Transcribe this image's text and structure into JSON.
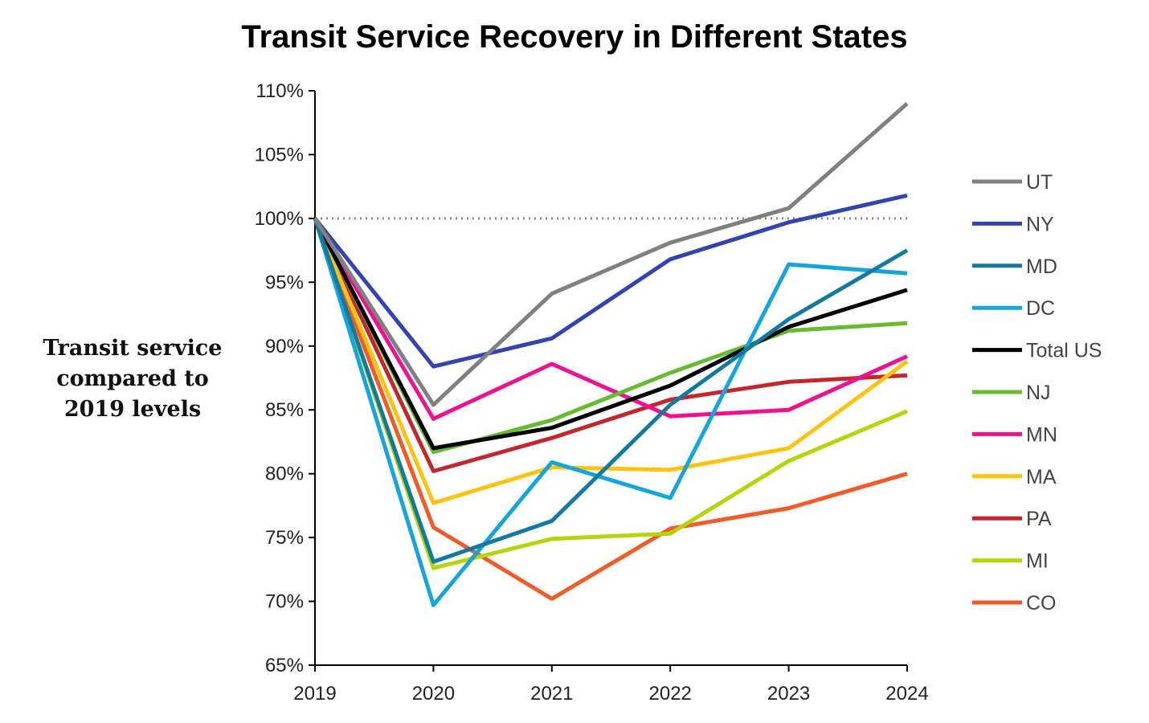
{
  "chart_data": {
    "type": "line",
    "title": "Transit Service Recovery in Different States",
    "ylabel": [
      "Transit service",
      "compared to",
      "2019 levels"
    ],
    "xlabel": "",
    "x": [
      "2019",
      "2020",
      "2021",
      "2022",
      "2023",
      "2024"
    ],
    "ylim": [
      65,
      110
    ],
    "yticks": [
      "65%",
      "70%",
      "75%",
      "80%",
      "85%",
      "90%",
      "95%",
      "100%",
      "105%",
      "110%"
    ],
    "reference_line": 100,
    "legend_position": "right",
    "series": [
      {
        "name": "UT",
        "color": "#808080",
        "values": [
          100,
          85.4,
          94.1,
          98.1,
          100.8,
          109
        ]
      },
      {
        "name": "NY",
        "color": "#3344b2",
        "values": [
          100,
          88.4,
          90.6,
          96.8,
          99.7,
          101.8
        ]
      },
      {
        "name": "MD",
        "color": "#127a9e",
        "values": [
          100,
          73.1,
          76.3,
          85.4,
          92.1,
          97.5
        ]
      },
      {
        "name": "DC",
        "color": "#16a4dc",
        "values": [
          100,
          69.7,
          80.9,
          78.1,
          96.4,
          95.7
        ]
      },
      {
        "name": "Total US",
        "color": "#000000",
        "values": [
          100,
          82,
          83.6,
          86.9,
          91.5,
          94.4
        ]
      },
      {
        "name": "NJ",
        "color": "#66bb33",
        "values": [
          100,
          81.7,
          84.2,
          87.9,
          91.2,
          91.8
        ]
      },
      {
        "name": "MN",
        "color": "#ee1190",
        "values": [
          100,
          84.3,
          88.6,
          84.5,
          85,
          89.2
        ]
      },
      {
        "name": "MA",
        "color": "#ffc20e",
        "values": [
          100,
          77.7,
          80.5,
          80.3,
          82,
          88.8
        ]
      },
      {
        "name": "PA",
        "color": "#c1272d",
        "values": [
          100,
          80.2,
          82.8,
          85.8,
          87.2,
          87.7
        ]
      },
      {
        "name": "MI",
        "color": "#b5d50a",
        "values": [
          100,
          72.6,
          74.9,
          75.3,
          81,
          84.9
        ]
      },
      {
        "name": "CO",
        "color": "#f15a29",
        "values": [
          100,
          75.8,
          70.2,
          75.7,
          77.3,
          80
        ]
      }
    ]
  }
}
